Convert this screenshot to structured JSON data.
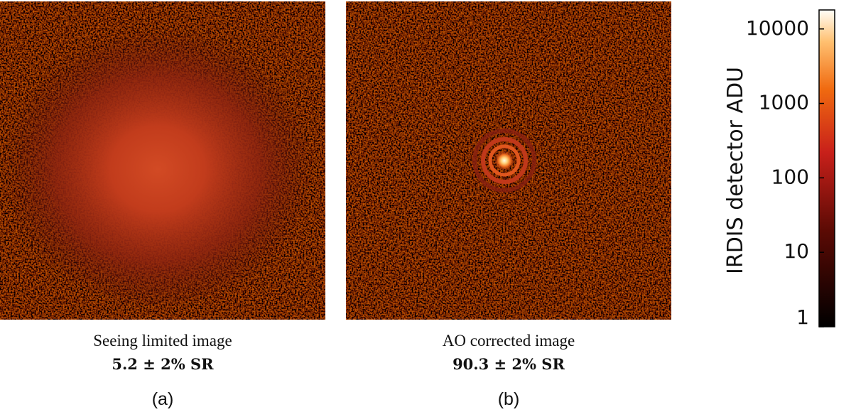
{
  "panels": [
    {
      "caption": "Seeing limited image",
      "strehl": "5.2 ± 2% SR",
      "label": "(a)"
    },
    {
      "caption": "AO corrected image",
      "strehl": "90.3 ± 2% SR",
      "label": "(b)"
    }
  ],
  "colorbar": {
    "label": "IRDIS detector ADU",
    "scale": "log",
    "lim": [
      1,
      18000
    ],
    "ticks": [
      1,
      10,
      100,
      1000,
      10000
    ]
  }
}
